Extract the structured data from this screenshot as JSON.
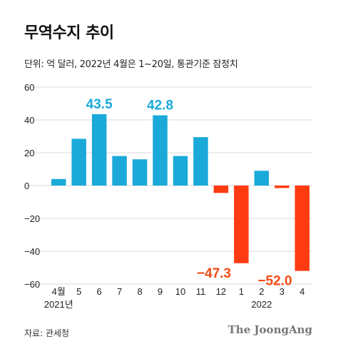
{
  "title": "무역수지 추이",
  "subtitle": "단위: 억 달러, 2022년 4월은 1~20일, 통관기준 잠정치",
  "source": "자료: 관세청",
  "logo": "The JoongAng",
  "colors": {
    "positive": "#1aa9d9",
    "negative": "#ff3b12",
    "grid": "#d9d9d9",
    "positive_label": "#1aa9d9",
    "negative_label": "#f24b14"
  },
  "chart_data": {
    "type": "bar",
    "categories": [
      "4월",
      "5",
      "6",
      "7",
      "8",
      "9",
      "10",
      "11",
      "12",
      "1",
      "2",
      "3",
      "4"
    ],
    "year_labels": [
      {
        "category": "4월",
        "text": "2021년"
      },
      {
        "category": "2",
        "text": "2022"
      }
    ],
    "values": [
      4,
      28.5,
      43.5,
      18,
      16,
      42.8,
      18,
      29.5,
      -4.5,
      -47.3,
      9,
      -1.5,
      -52.0
    ],
    "data_labels": [
      {
        "category": "6",
        "text": "43.5"
      },
      {
        "category": "9",
        "text": "42.8"
      },
      {
        "category": "1",
        "text": "−47.3"
      },
      {
        "category": "4",
        "text": "−52.0"
      }
    ],
    "ylim": [
      -60,
      60
    ],
    "yticks": [
      60,
      40,
      20,
      0,
      -20,
      -40,
      -60
    ],
    "ytick_labels": [
      "60",
      "40",
      "20",
      "0",
      "−20",
      "−40",
      "−60"
    ],
    "grid": true
  }
}
